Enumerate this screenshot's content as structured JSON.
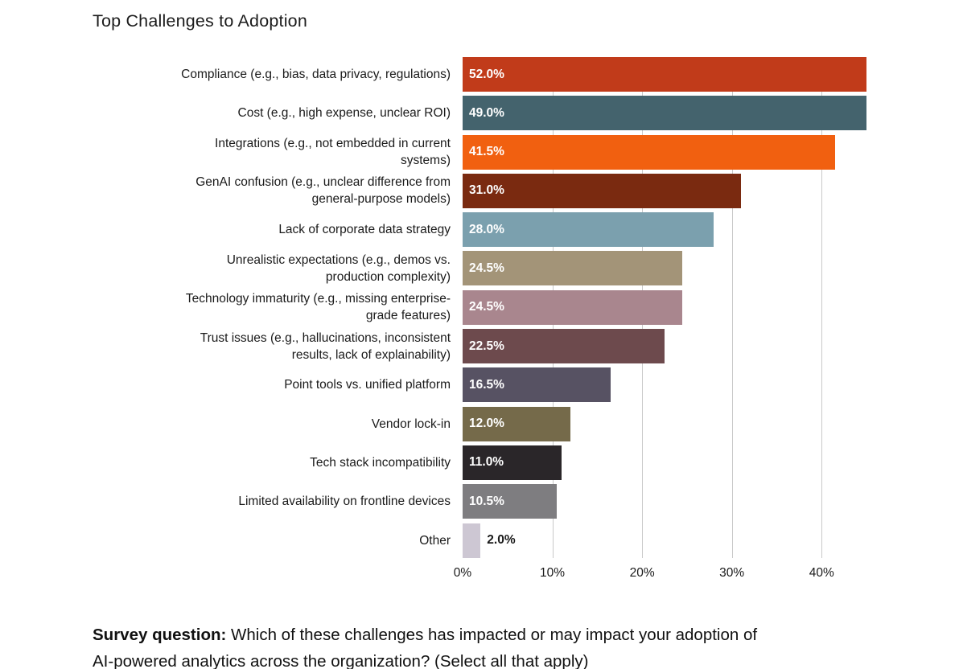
{
  "chart_data": {
    "type": "bar",
    "orientation": "horizontal",
    "title": "Top Challenges to Adoption",
    "xlabel": "",
    "ylabel": "",
    "xlim": [
      0,
      45
    ],
    "x_ticks": [
      "0%",
      "10%",
      "20%",
      "30%",
      "40%"
    ],
    "x_tick_values": [
      0,
      10,
      20,
      30,
      40
    ],
    "grid": "vertical gridlines at 10/20/30/40, drawn behind bars; bars exceeding 45% are clipped at plot edge",
    "gridline_color": "#c9c9c9",
    "categories": [
      "Compliance (e.g., bias, data privacy, regulations)",
      "Cost (e.g., high expense, unclear ROI)",
      "Integrations (e.g., not embedded in current\nsystems)",
      "GenAI confusion (e.g., unclear difference from\ngeneral-purpose models)",
      "Lack of corporate data strategy",
      "Unrealistic expectations (e.g., demos vs.\nproduction complexity)",
      "Technology immaturity (e.g., missing enterprise-\ngrade features)",
      "Trust issues (e.g., hallucinations, inconsistent\nresults, lack of explainability)",
      "Point tools vs. unified platform",
      "Vendor lock-in",
      "Tech stack incompatibility",
      "Limited availability on frontline devices",
      "Other"
    ],
    "values": [
      52.0,
      49.0,
      41.5,
      31.0,
      28.0,
      24.5,
      24.5,
      22.5,
      16.5,
      12.0,
      11.0,
      10.5,
      2.0
    ],
    "value_labels": [
      "52.0%",
      "49.0%",
      "41.5%",
      "31.0%",
      "28.0%",
      "24.5%",
      "24.5%",
      "22.5%",
      "16.5%",
      "12.0%",
      "11.0%",
      "10.5%",
      "2.0%"
    ],
    "bar_colors": [
      "#c13b1a",
      "#44636d",
      "#f16010",
      "#7a2a10",
      "#7ba0ae",
      "#a39478",
      "#a9868e",
      "#6d4a4d",
      "#575263",
      "#756a4a",
      "#2a2629",
      "#7e7d80",
      "#cdc7d3"
    ],
    "value_label_color_inside": "#ffffff",
    "value_label_color_outside": "#1a1a1a"
  },
  "footer": {
    "bold_prefix": "Survey question:",
    "line1": "Which of these challenges has impacted or may impact your adoption of",
    "line2": "AI-powered analytics across the organization? (Select all that apply)"
  }
}
